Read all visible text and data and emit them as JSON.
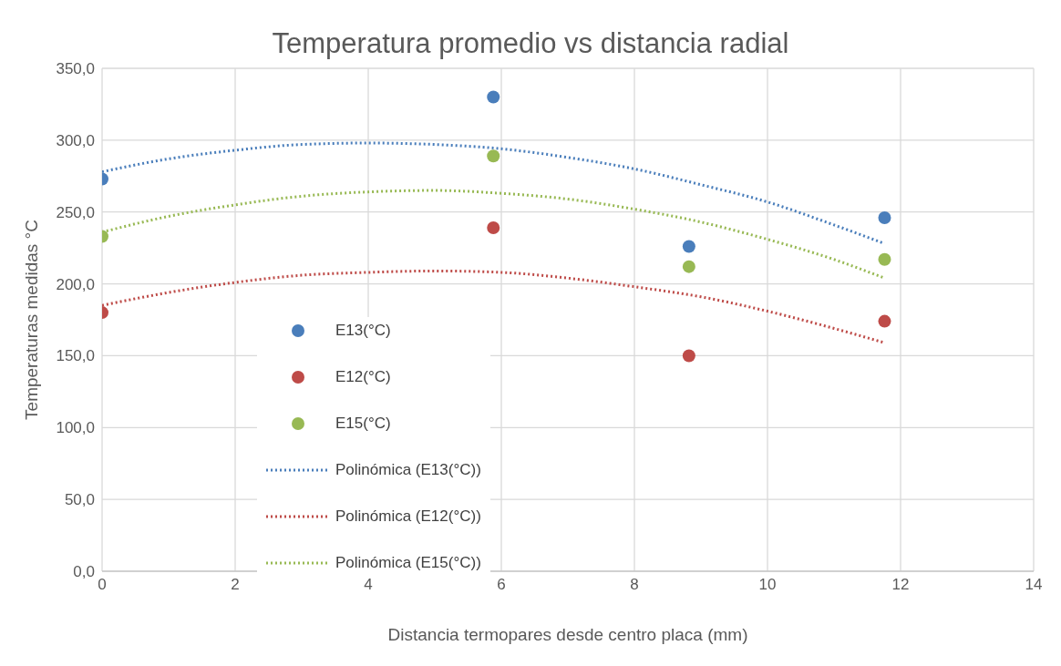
{
  "chart_data": {
    "type": "scatter",
    "title": "Temperatura promedio vs distancia radial",
    "xlabel": "Distancia termopares desde centro placa (mm)",
    "ylabel": "Temperaturas medidas °C",
    "xlim": [
      0,
      14
    ],
    "xticks": [
      0,
      2,
      4,
      6,
      8,
      10,
      12,
      14
    ],
    "ylim": [
      0,
      350
    ],
    "yticks": [
      {
        "value": 0,
        "label": "0,0"
      },
      {
        "value": 50,
        "label": "50,0"
      },
      {
        "value": 100,
        "label": "100,0"
      },
      {
        "value": 150,
        "label": "150,0"
      },
      {
        "value": 200,
        "label": "200,0"
      },
      {
        "value": 250,
        "label": "250,0"
      },
      {
        "value": 300,
        "label": "300,0"
      },
      {
        "value": 350,
        "label": "350,0"
      }
    ],
    "grid": true,
    "legend": "bottom left",
    "marker": "circle",
    "series": [
      {
        "name": "E13(°C)",
        "color": "#4a7ebb",
        "x": [
          0,
          5.88,
          8.82,
          11.76
        ],
        "values": [
          273,
          330,
          226,
          246
        ]
      },
      {
        "name": "E12(°C)",
        "color": "#be4b48",
        "x": [
          0,
          5.88,
          8.82,
          11.76
        ],
        "values": [
          180,
          239,
          150,
          174
        ]
      },
      {
        "name": "E15(°C)",
        "color": "#98b954",
        "x": [
          0,
          5.88,
          8.82,
          11.76
        ],
        "values": [
          233,
          289,
          212,
          217
        ]
      },
      {
        "name": "Polinómica (E13(°C))",
        "type": "line",
        "marker": "none",
        "line_style": "dotted",
        "color": "#4a7ebb",
        "x": [
          0,
          1,
          2,
          3,
          4,
          5,
          6,
          7,
          8,
          9,
          10,
          11,
          11.76
        ],
        "values": [
          278,
          287,
          293,
          297,
          298,
          297,
          294,
          288,
          280,
          269,
          257,
          241,
          228
        ]
      },
      {
        "name": "Polinómica (E12(°C))",
        "type": "line",
        "marker": "none",
        "line_style": "dotted",
        "color": "#be4b48",
        "x": [
          0,
          1,
          2,
          3,
          4,
          5,
          6,
          7,
          8,
          9,
          10,
          11,
          11.76
        ],
        "values": [
          185,
          194,
          201,
          206,
          208,
          209,
          208,
          204,
          198,
          191,
          181,
          169,
          159
        ]
      },
      {
        "name": "Polinómica (E15(°C))",
        "type": "line",
        "marker": "none",
        "line_style": "dotted",
        "color": "#98b954",
        "x": [
          0,
          1,
          2,
          3,
          4,
          5,
          6,
          7,
          8,
          9,
          10,
          11,
          11.76
        ],
        "values": [
          236,
          247,
          255,
          261,
          264,
          265,
          263,
          259,
          252,
          243,
          231,
          217,
          204
        ]
      }
    ]
  }
}
